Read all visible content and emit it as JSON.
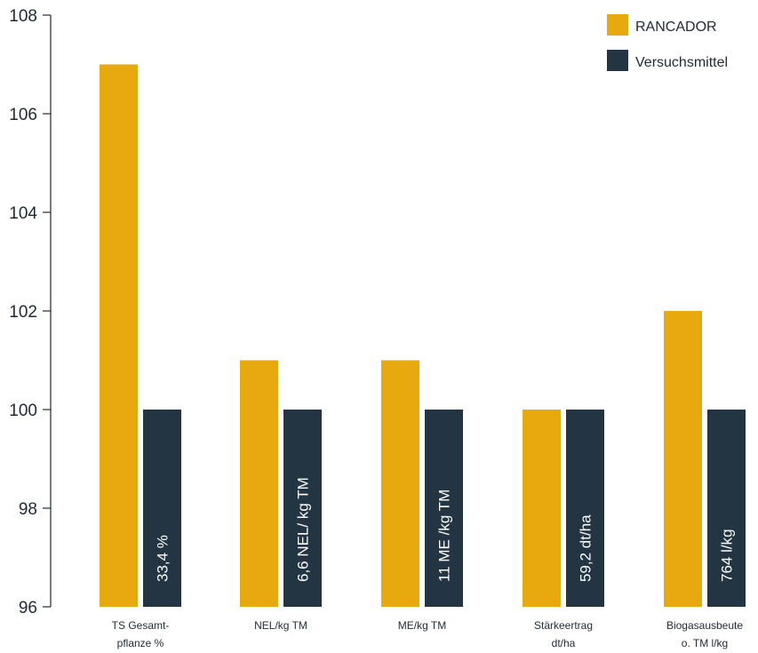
{
  "chart_data": {
    "type": "bar",
    "categories": [
      [
        "TS Gesamt-",
        "pflanze %"
      ],
      [
        "NEL/kg TM"
      ],
      [
        "ME/kg TM"
      ],
      [
        "Stärkeertrag",
        "dt/ha"
      ],
      [
        "Biogasausbeute",
        "o. TM l/kg"
      ]
    ],
    "series": [
      {
        "name": "RANCADOR",
        "color": "#e8a90f",
        "values": [
          107,
          101,
          101,
          100,
          102
        ]
      },
      {
        "name": "Versuchsmittel",
        "color": "#233443",
        "values": [
          100,
          100,
          100,
          100,
          100
        ],
        "bar_labels": [
          "33,4 %",
          "6,6 NEL/ kg TM",
          "11 ME /kg TM",
          "59,2 dt/ha",
          "764 l/kg"
        ]
      }
    ],
    "ylim": [
      96,
      108
    ],
    "yticks": [
      96,
      98,
      100,
      102,
      104,
      106,
      108
    ],
    "legend_position": "top-right",
    "grid": false
  }
}
